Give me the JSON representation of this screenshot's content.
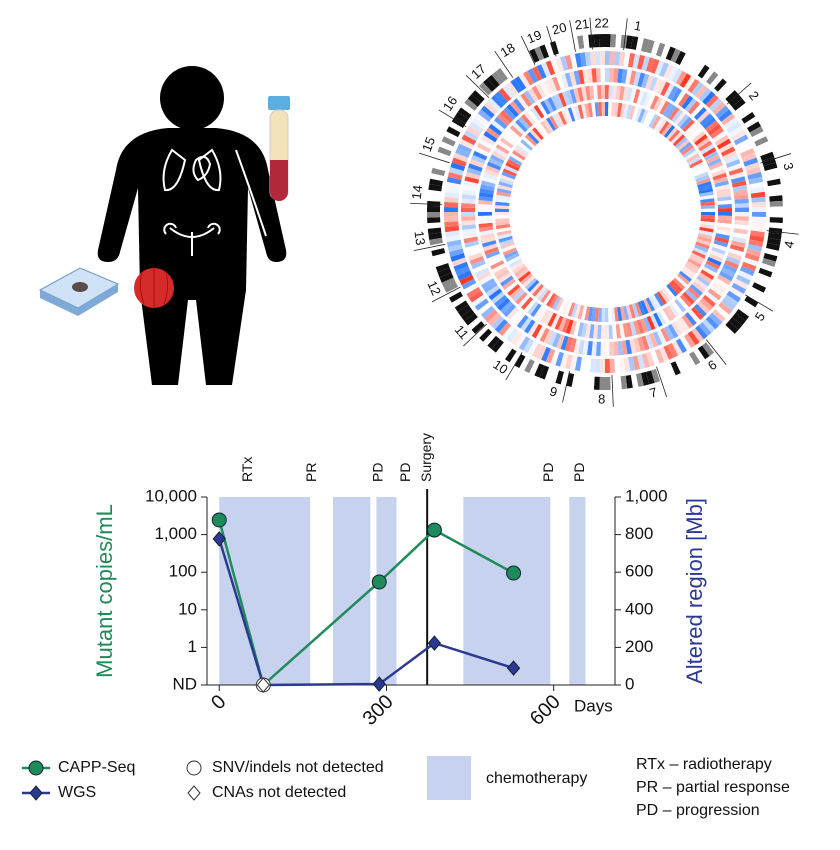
{
  "circos": {
    "labels": [
      "1",
      "2",
      "3",
      "4",
      "5",
      "6",
      "7",
      "8",
      "9",
      "10",
      "11",
      "12",
      "13",
      "14",
      "15",
      "16",
      "17",
      "18",
      "19",
      "20",
      "21",
      "22"
    ]
  },
  "chart_data": {
    "type": "line",
    "ylabel": "Mutant copies/mL",
    "y2label": "Altered region [Mb]",
    "xlabel": "Days",
    "x": [
      0,
      79,
      287,
      386,
      528
    ],
    "xlim": [
      -22,
      710
    ],
    "xticks": [
      0,
      300,
      600
    ],
    "ylim": [
      0.1,
      10000
    ],
    "yscale": "log",
    "yticks": [
      {
        "value": 0.1,
        "label": "ND"
      },
      1,
      10,
      100,
      {
        "value": 1000,
        "label": "1,000"
      },
      {
        "value": 10000,
        "label": "10,000"
      }
    ],
    "y2lim": [
      0,
      1000
    ],
    "y2ticks": [
      0,
      200,
      400,
      600,
      800,
      {
        "value": 1000,
        "label": "1,000"
      }
    ],
    "series": [
      {
        "name": "CAPP-Seq",
        "color": "#1f8a5a",
        "marker": "circle",
        "values": [
          2450,
          0.1,
          55,
          1320,
          95
        ]
      },
      {
        "name": "WGS",
        "color": "#2b3990",
        "marker": "diamond",
        "axis": "y2",
        "values": [
          777,
          0,
          5,
          223,
          90
        ]
      }
    ],
    "events": [
      {
        "label": "RTx",
        "day": 52
      },
      {
        "label": "PR",
        "day": 167
      },
      {
        "label": "PD",
        "day": 286
      },
      {
        "label": "PD",
        "day": 336
      },
      {
        "label": "Surgery",
        "day": 373,
        "line": true
      },
      {
        "label": "PD",
        "day": 592
      },
      {
        "label": "PD",
        "day": 648
      }
    ],
    "shaded": {
      "name": "chemotherapy",
      "color": "#c7d2ee",
      "spans": [
        [
          0,
          163
        ],
        [
          204,
          271
        ],
        [
          282,
          318
        ],
        [
          438,
          594
        ],
        [
          628,
          657
        ]
      ]
    },
    "not_detected": [
      {
        "label": "SNV/indels not detected",
        "marker": "circle"
      },
      {
        "label": "CNAs not detected",
        "marker": "diamond"
      }
    ],
    "abbreviations": [
      "RTx – radiotherapy",
      "PR – partial response",
      "PD – progression"
    ]
  }
}
